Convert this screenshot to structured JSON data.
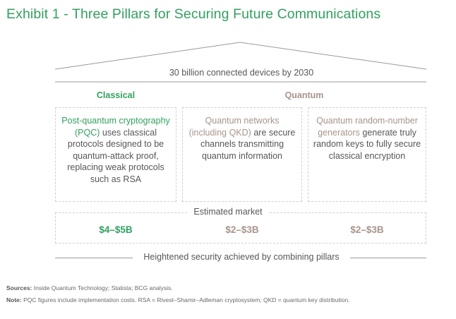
{
  "title": "Exhibit 1 - Three Pillars for Securing Future Communications",
  "roof_label": "30 billion connected devices by 2030",
  "categories": {
    "classical": "Classical",
    "quantum": "Quantum"
  },
  "pillars": [
    {
      "highlight": "Post-quantum cryptography (PQC)",
      "text": "uses classical protocols designed to be quantum-attack proof, replacing weak protocols such as RSA",
      "market": "$4–$5B",
      "color": "#32a05f"
    },
    {
      "highlight": "Quantum networks (including QKD)",
      "text": "are secure channels transmitting quantum information",
      "market": "$2–$3B",
      "color": "#a8948c"
    },
    {
      "highlight": "Quantum random-number generators",
      "text": "generate truly random keys to fully secure classical encryption",
      "market": "$2–$3B",
      "color": "#a8948c"
    }
  ],
  "market_label": "Estimated market",
  "bottom_label": "Heightened security achieved by combining pillars",
  "footnotes": {
    "sources_label": "Sources:",
    "sources_text": "Inside Quantum Technology; Statista; BCG analysis.",
    "note_label": "Note:",
    "note_text": "PQC figures include implementation costs. RSA = Rivest–Shamir–Adleman cryptosystem; QKD = quantum key distribution."
  },
  "colors": {
    "classical": "#32a05f",
    "quantum": "#a8948c",
    "text": "#575757"
  }
}
